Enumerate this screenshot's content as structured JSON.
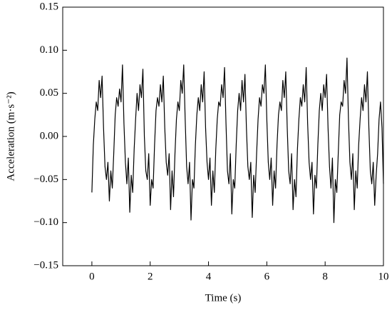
{
  "chart_data": {
    "type": "line",
    "xlabel": "Time (s)",
    "ylabel": "Acceleration (m·s⁻²)",
    "xlim": [
      -1,
      10
    ],
    "ylim": [
      -0.15,
      0.15
    ],
    "xticks": [
      0,
      2,
      4,
      6,
      8,
      10
    ],
    "yticks": [
      {
        "value": -0.15,
        "label": "−0.15"
      },
      {
        "value": -0.1,
        "label": "−0.10"
      },
      {
        "value": -0.05,
        "label": "−0.05"
      },
      {
        "value": 0,
        "label": "0.00"
      },
      {
        "value": 0.05,
        "label": "0.05"
      },
      {
        "value": 0.1,
        "label": "0.10"
      },
      {
        "value": 0.15,
        "label": "0.15"
      }
    ],
    "color": "#000000",
    "x": [
      0,
      0.05,
      0.1,
      0.15,
      0.2,
      0.25,
      0.3,
      0.35,
      0.4,
      0.45,
      0.5,
      0.55,
      0.6,
      0.65,
      0.7,
      0.75,
      0.8,
      0.85,
      0.9,
      0.95,
      1,
      1.05,
      1.1,
      1.15,
      1.2,
      1.25,
      1.3,
      1.35,
      1.4,
      1.45,
      1.5,
      1.55,
      1.6,
      1.65,
      1.7,
      1.75,
      1.8,
      1.85,
      1.9,
      1.95,
      2,
      2.05,
      2.1,
      2.15,
      2.2,
      2.25,
      2.3,
      2.35,
      2.4,
      2.45,
      2.5,
      2.55,
      2.6,
      2.65,
      2.7,
      2.75,
      2.8,
      2.85,
      2.9,
      2.95,
      3,
      3.05,
      3.1,
      3.15,
      3.2,
      3.25,
      3.3,
      3.35,
      3.4,
      3.45,
      3.5,
      3.55,
      3.6,
      3.65,
      3.7,
      3.75,
      3.8,
      3.85,
      3.9,
      3.95,
      4,
      4.05,
      4.1,
      4.15,
      4.2,
      4.25,
      4.3,
      4.35,
      4.4,
      4.45,
      4.5,
      4.55,
      4.6,
      4.65,
      4.7,
      4.75,
      4.8,
      4.85,
      4.9,
      4.95,
      5,
      5.05,
      5.1,
      5.15,
      5.2,
      5.25,
      5.3,
      5.35,
      5.4,
      5.45,
      5.5,
      5.55,
      5.6,
      5.65,
      5.7,
      5.75,
      5.8,
      5.85,
      5.9,
      5.95,
      6,
      6.05,
      6.1,
      6.15,
      6.2,
      6.25,
      6.3,
      6.35,
      6.4,
      6.45,
      6.5,
      6.55,
      6.6,
      6.65,
      6.7,
      6.75,
      6.8,
      6.85,
      6.9,
      6.95,
      7,
      7.05,
      7.1,
      7.15,
      7.2,
      7.25,
      7.3,
      7.35,
      7.4,
      7.45,
      7.5,
      7.55,
      7.6,
      7.65,
      7.7,
      7.75,
      7.8,
      7.85,
      7.9,
      7.95,
      8,
      8.05,
      8.1,
      8.15,
      8.2,
      8.25,
      8.3,
      8.35,
      8.4,
      8.45,
      8.5,
      8.55,
      8.6,
      8.65,
      8.7,
      8.75,
      8.8,
      8.85,
      8.9,
      8.95,
      9,
      9.05,
      9.1,
      9.15,
      9.2,
      9.25,
      9.3,
      9.35,
      9.4,
      9.45,
      9.5,
      9.55,
      9.6,
      9.65,
      9.7,
      9.75,
      9.8,
      9.85,
      9.9,
      9.95,
      10
    ],
    "values": [
      -0.065,
      -0.01,
      0.02,
      0.04,
      0.03,
      0.065,
      0.045,
      0.07,
      0.01,
      -0.035,
      -0.05,
      -0.03,
      -0.075,
      -0.04,
      -0.06,
      -0.02,
      0.025,
      0.045,
      0.035,
      0.055,
      0.04,
      0.083,
      0.015,
      -0.03,
      -0.055,
      -0.025,
      -0.088,
      -0.045,
      -0.065,
      -0.015,
      0.02,
      0.05,
      0.03,
      0.06,
      0.045,
      0.078,
      0.0,
      -0.04,
      -0.05,
      -0.02,
      -0.08,
      -0.05,
      -0.06,
      -0.01,
      0.03,
      0.045,
      0.035,
      0.06,
      0.04,
      0.07,
      0.01,
      -0.03,
      -0.045,
      -0.02,
      -0.085,
      -0.04,
      -0.07,
      -0.02,
      0.02,
      0.04,
      0.03,
      0.065,
      0.05,
      0.083,
      0.02,
      -0.035,
      -0.055,
      -0.03,
      -0.097,
      -0.05,
      -0.06,
      -0.01,
      0.025,
      0.045,
      0.03,
      0.06,
      0.04,
      0.075,
      0.01,
      -0.03,
      -0.05,
      -0.025,
      -0.08,
      -0.04,
      -0.065,
      -0.015,
      0.02,
      0.04,
      0.035,
      0.06,
      0.045,
      0.08,
      0.015,
      -0.04,
      -0.055,
      -0.02,
      -0.09,
      -0.05,
      -0.06,
      -0.01,
      0.03,
      0.05,
      0.03,
      0.065,
      0.04,
      0.072,
      0.01,
      -0.035,
      -0.05,
      -0.03,
      -0.094,
      -0.045,
      -0.065,
      -0.02,
      0.02,
      0.045,
      0.035,
      0.06,
      0.05,
      0.083,
      0.02,
      -0.03,
      -0.05,
      -0.025,
      -0.08,
      -0.04,
      -0.06,
      -0.01,
      0.025,
      0.04,
      0.03,
      0.065,
      0.045,
      0.075,
      0.01,
      -0.04,
      -0.055,
      -0.02,
      -0.085,
      -0.05,
      -0.07,
      -0.015,
      0.02,
      0.045,
      0.035,
      0.06,
      0.04,
      0.08,
      0.015,
      -0.03,
      -0.05,
      -0.03,
      -0.09,
      -0.045,
      -0.06,
      -0.01,
      0.03,
      0.05,
      0.03,
      0.06,
      0.045,
      0.072,
      0.01,
      -0.035,
      -0.06,
      -0.025,
      -0.1,
      -0.05,
      -0.065,
      -0.02,
      0.025,
      0.04,
      0.035,
      0.065,
      0.05,
      0.091,
      0.02,
      -0.03,
      -0.05,
      -0.02,
      -0.085,
      -0.04,
      -0.06,
      -0.01,
      0.02,
      0.045,
      0.03,
      0.06,
      0.04,
      0.075,
      0.01,
      -0.04,
      -0.055,
      -0.03,
      -0.08,
      -0.045,
      -0.02,
      0.02,
      0.04,
      0.01,
      -0.055
    ]
  }
}
